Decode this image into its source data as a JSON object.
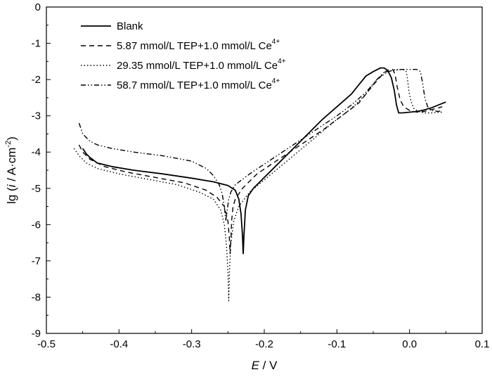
{
  "chart_data": {
    "type": "line",
    "xlabel": {
      "italic": "E",
      "rest": " / V"
    },
    "ylabel": {
      "prefix": "lg (",
      "italic": "i",
      "middle": " / A·cm",
      "sup": "-2",
      "suffix": ")"
    },
    "xlim": [
      -0.5,
      0.1
    ],
    "ylim": [
      -9,
      0
    ],
    "x_ticks": [
      -0.5,
      -0.4,
      -0.3,
      -0.2,
      -0.1,
      0.0,
      0.1
    ],
    "x_tick_labels": [
      "-0.5",
      "-0.4",
      "-0.3",
      "-0.2",
      "-0.1",
      "0.0",
      "0.1"
    ],
    "y_ticks": [
      0,
      -1,
      -2,
      -3,
      -4,
      -5,
      -6,
      -7,
      -8,
      -9
    ],
    "y_tick_labels": [
      "0",
      "-1",
      "-2",
      "-3",
      "-4",
      "-5",
      "-6",
      "-7",
      "-8",
      "-9"
    ],
    "grid": false,
    "legend_position": "top-left",
    "series": [
      {
        "name": "Blank",
        "name_sup": "",
        "style": "solid",
        "color": "#000000",
        "x": [
          -0.45,
          -0.445,
          -0.44,
          -0.43,
          -0.41,
          -0.38,
          -0.34,
          -0.3,
          -0.27,
          -0.25,
          -0.24,
          -0.235,
          -0.232,
          -0.23,
          -0.229,
          -0.228,
          -0.226,
          -0.222,
          -0.215,
          -0.2,
          -0.18,
          -0.15,
          -0.12,
          -0.1,
          -0.08,
          -0.07,
          -0.06,
          -0.05,
          -0.04,
          -0.035,
          -0.03,
          -0.025,
          -0.021,
          -0.018,
          -0.015,
          -0.01,
          0.0,
          0.01,
          0.02,
          0.03,
          0.04,
          0.05
        ],
        "y": [
          -3.9,
          -4.05,
          -4.15,
          -4.3,
          -4.4,
          -4.5,
          -4.6,
          -4.72,
          -4.82,
          -4.92,
          -5.05,
          -5.3,
          -5.7,
          -6.3,
          -6.8,
          -6.3,
          -5.6,
          -5.2,
          -5.0,
          -4.7,
          -4.3,
          -3.7,
          -3.1,
          -2.75,
          -2.4,
          -2.15,
          -1.9,
          -1.78,
          -1.68,
          -1.68,
          -1.75,
          -1.95,
          -2.3,
          -2.7,
          -2.92,
          -2.92,
          -2.9,
          -2.88,
          -2.84,
          -2.78,
          -2.7,
          -2.62
        ]
      },
      {
        "name": "5.87 mmol/L TEP+1.0 mmol/L Ce",
        "name_sup": "4+",
        "style": "dashed",
        "color": "#000000",
        "x": [
          -0.455,
          -0.45,
          -0.44,
          -0.42,
          -0.39,
          -0.35,
          -0.31,
          -0.28,
          -0.265,
          -0.255,
          -0.25,
          -0.248,
          -0.247,
          -0.246,
          -0.245,
          -0.243,
          -0.24,
          -0.23,
          -0.21,
          -0.18,
          -0.15,
          -0.12,
          -0.09,
          -0.07,
          -0.06,
          -0.05,
          -0.04,
          -0.033,
          -0.028,
          -0.023,
          -0.02,
          -0.017,
          -0.013,
          -0.008,
          0.0,
          0.01,
          0.02,
          0.03,
          0.04,
          0.045
        ],
        "y": [
          -3.8,
          -4.0,
          -4.2,
          -4.4,
          -4.55,
          -4.7,
          -4.85,
          -5.05,
          -5.25,
          -5.5,
          -5.9,
          -6.4,
          -6.8,
          -6.4,
          -5.9,
          -5.5,
          -5.3,
          -5.0,
          -4.6,
          -4.2,
          -3.8,
          -3.4,
          -2.95,
          -2.65,
          -2.4,
          -2.15,
          -1.92,
          -1.78,
          -1.72,
          -1.72,
          -1.85,
          -2.2,
          -2.55,
          -2.75,
          -2.85,
          -2.9,
          -2.88,
          -2.83,
          -2.78,
          -2.75
        ]
      },
      {
        "name": "29.35 mmol/L TEP+1.0 mmol/L Ce",
        "name_sup": "4+",
        "style": "dotted",
        "color": "#000000",
        "x": [
          -0.462,
          -0.455,
          -0.445,
          -0.43,
          -0.4,
          -0.36,
          -0.32,
          -0.29,
          -0.27,
          -0.26,
          -0.255,
          -0.252,
          -0.25,
          -0.249,
          -0.248,
          -0.246,
          -0.242,
          -0.235,
          -0.22,
          -0.19,
          -0.16,
          -0.13,
          -0.1,
          -0.08,
          -0.06,
          -0.045,
          -0.03,
          -0.02,
          -0.01,
          -0.005,
          -0.003,
          -0.001,
          0.002,
          0.006,
          0.012,
          0.02,
          0.03,
          0.04,
          0.045
        ],
        "y": [
          -3.9,
          -4.1,
          -4.3,
          -4.45,
          -4.6,
          -4.75,
          -4.9,
          -5.1,
          -5.3,
          -5.6,
          -6.0,
          -6.6,
          -7.3,
          -8.1,
          -7.3,
          -6.5,
          -5.9,
          -5.5,
          -5.1,
          -4.6,
          -4.1,
          -3.6,
          -3.1,
          -2.8,
          -2.4,
          -2.0,
          -1.78,
          -1.73,
          -1.72,
          -1.75,
          -1.95,
          -2.3,
          -2.6,
          -2.8,
          -2.88,
          -2.92,
          -2.92,
          -2.9,
          -2.9
        ]
      },
      {
        "name": "58.7 mmol/L TEP+1.0 mmol/L Ce",
        "name_sup": "4+",
        "style": "dashdotdot",
        "color": "#000000",
        "x": [
          -0.455,
          -0.45,
          -0.44,
          -0.43,
          -0.41,
          -0.38,
          -0.34,
          -0.3,
          -0.28,
          -0.27,
          -0.262,
          -0.258,
          -0.255,
          -0.253,
          -0.251,
          -0.249,
          -0.246,
          -0.24,
          -0.22,
          -0.19,
          -0.16,
          -0.13,
          -0.1,
          -0.08,
          -0.06,
          -0.045,
          -0.035,
          -0.02,
          -0.01,
          0.0,
          0.01,
          0.015,
          0.018,
          0.021,
          0.025,
          0.03,
          0.04,
          0.045
        ],
        "y": [
          -3.2,
          -3.5,
          -3.7,
          -3.8,
          -3.9,
          -4.0,
          -4.1,
          -4.25,
          -4.45,
          -4.65,
          -4.9,
          -5.15,
          -5.5,
          -5.9,
          -5.6,
          -5.3,
          -5.1,
          -4.9,
          -4.6,
          -4.2,
          -3.8,
          -3.4,
          -3.0,
          -2.7,
          -2.35,
          -2.0,
          -1.8,
          -1.74,
          -1.72,
          -1.72,
          -1.72,
          -1.78,
          -2.1,
          -2.5,
          -2.75,
          -2.85,
          -2.88,
          -2.85
        ]
      }
    ]
  }
}
